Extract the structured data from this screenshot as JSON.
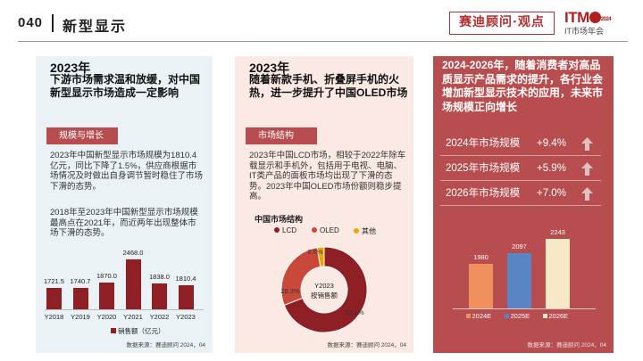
{
  "header": {
    "page_number": "040",
    "title": "新型显示",
    "brand": "赛迪顾问·观点",
    "logo_main": "ITM",
    "logo_year": "2024",
    "logo_sub": "IT市场年会"
  },
  "panel1": {
    "year": "2023年",
    "headline": "下游市场需求温和放缓，对中国新型显示市场造成一定影响",
    "tag": "规模与增长",
    "para1": "2023年中国新型显示市场规模为1810.4亿元，同比下降了1.5%，供应商根据市场情况及时做出自身调节暂时稳住了市场下滑的态势。",
    "para2": "2018年至2023年中国新型显示市场规模最高点在2021年，而近两年出现整体市场下滑的态势。",
    "legend": "销售额（亿元）",
    "source": "数据来源：赛迪顾问 2024，04"
  },
  "panel2": {
    "year": "2023年",
    "headline": "随着新款手机、折叠屏手机的火热，进一步提升了中国OLED市场",
    "tag": "市场结构",
    "para": "2023年中国LCD市场，相较于2022年除车载显示和手机外，包括用于电视、电脑、IT类产品的面板市场均出现了下滑的态势。2023年中国OLED市场份额则稳步提高。",
    "chart_title": "中国市场结构",
    "center_label_1": "Y2023",
    "center_label_2": "按销售额",
    "source": "数据来源：赛迪顾问 2024，04"
  },
  "panel3": {
    "headline": "2024-2026年，随着消费者对高品质显示产品需求的提升，各行业会增加新型显示技术的应用，未来市场规模正向增长",
    "stats": [
      {
        "label": "2024年市场规模",
        "value": "+9.4%"
      },
      {
        "label": "2025年市场规模",
        "value": "+5.9%"
      },
      {
        "label": "2026年市场规模",
        "value": "+7.0%"
      }
    ],
    "source": "数据来源：赛迪顾问 2024，04"
  },
  "chart_data": [
    {
      "type": "bar",
      "categories": [
        "Y2018",
        "Y2019",
        "Y2020",
        "Y2021",
        "Y2022",
        "Y2023"
      ],
      "series": [
        {
          "name": "销售额（亿元）",
          "values": [
            1721.5,
            1740.7,
            1870.0,
            2468.0,
            1838.0,
            1810.4
          ]
        }
      ],
      "value_labels": [
        "1721.5",
        "1740.7",
        "1870.0",
        "2468.0",
        "1838.0",
        "1810.4"
      ],
      "color": "#8e1f24"
    },
    {
      "type": "pie",
      "title": "中国市场结构",
      "labels": [
        "LCD",
        "OLED",
        "其他"
      ],
      "values": [
        69.1,
        28.3,
        2.6
      ],
      "value_labels": [
        "69.1%",
        "28.3%",
        "2.6%"
      ],
      "colors": [
        "#8e1f24",
        "#c9483a",
        "#f0a500"
      ]
    },
    {
      "type": "bar",
      "categories": [
        "2024E",
        "2025E",
        "2026E"
      ],
      "values": [
        1980,
        2097,
        2243
      ],
      "value_labels": [
        "1980",
        "2097",
        "2243"
      ],
      "colors": [
        "#f0905e",
        "#5a85c4",
        "#f7e8c8"
      ]
    }
  ]
}
